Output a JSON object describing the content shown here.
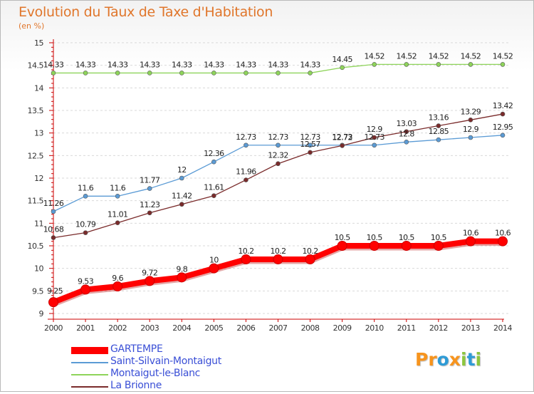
{
  "header": {
    "title": "Evolution du Taux de Taxe d'Habitation",
    "subtitle": "(en %)"
  },
  "logo": {
    "letters": [
      "P",
      "r",
      "o",
      "x",
      "i",
      "t",
      "i"
    ],
    "colors": [
      "#f7941d",
      "#f7941d",
      "#2e9bd6",
      "#f7941d",
      "#8cc63f",
      "#2e9bd6",
      "#8cc63f"
    ]
  },
  "chart_data": {
    "type": "line",
    "title": "Evolution du Taux de Taxe d'Habitation",
    "ylabel": "(en %)",
    "xlabel": "",
    "x": [
      "2000",
      "2001",
      "2002",
      "2003",
      "2004",
      "2005",
      "2006",
      "2007",
      "2008",
      "2009",
      "2010",
      "2011",
      "2012",
      "2013",
      "2014"
    ],
    "ylim": [
      9,
      15
    ],
    "yticks": [
      "9",
      "9.5",
      "10",
      "10.5",
      "11",
      "11.5",
      "12",
      "12.5",
      "13",
      "13.5",
      "14",
      "14.5",
      "15"
    ],
    "grid": "horizontal dashed",
    "legend_position": "bottom-left",
    "series": [
      {
        "name": "GARTEMPE",
        "color": "#ff0000",
        "values": [
          9.25,
          9.53,
          9.6,
          9.72,
          9.8,
          10,
          10.2,
          10.2,
          10.2,
          10.5,
          10.5,
          10.5,
          10.5,
          10.6,
          10.6
        ],
        "labels": [
          "9.25",
          "9.53",
          "9.6",
          "9.72",
          "9.8",
          "10",
          "10.2",
          "10.2",
          "10.2",
          "10.5",
          "10.5",
          "10.5",
          "10.5",
          "10.6",
          "10.6"
        ]
      },
      {
        "name": "Saint-Silvain-Montaigut",
        "color": "#5b9bd5",
        "values": [
          11.26,
          11.6,
          11.6,
          11.77,
          12,
          12.36,
          12.73,
          12.73,
          12.73,
          12.73,
          12.73,
          12.8,
          12.85,
          12.9,
          12.95
        ],
        "labels": [
          "11.26",
          "11.6",
          "11.6",
          "11.77",
          "12",
          "12.36",
          "12.73",
          "12.73",
          "12.73",
          "12.73",
          "12.73",
          "12.8",
          "12.85",
          "12.9",
          "12.95"
        ]
      },
      {
        "name": "Montaigut-le-Blanc",
        "color": "#8ed45a",
        "values": [
          14.33,
          14.33,
          14.33,
          14.33,
          14.33,
          14.33,
          14.33,
          14.33,
          14.33,
          14.45,
          14.52,
          14.52,
          14.52,
          14.52,
          14.52
        ],
        "labels": [
          "14.33",
          "14.33",
          "14.33",
          "14.33",
          "14.33",
          "14.33",
          "14.33",
          "14.33",
          "14.33",
          "14.45",
          "14.52",
          "14.52",
          "14.52",
          "14.52",
          "14.52"
        ]
      },
      {
        "name": "La Brionne",
        "color": "#7a2b2b",
        "values": [
          10.68,
          10.79,
          11.01,
          11.23,
          11.42,
          11.61,
          11.96,
          12.32,
          12.57,
          12.72,
          12.9,
          13.03,
          13.16,
          13.29,
          13.42
        ],
        "labels": [
          "10.68",
          "10.79",
          "11.01",
          "11.23",
          "11.42",
          "11.61",
          "11.96",
          "12.32",
          "12.57",
          "12.72",
          "12.9",
          "13.03",
          "13.16",
          "13.29",
          "13.42"
        ]
      }
    ]
  }
}
